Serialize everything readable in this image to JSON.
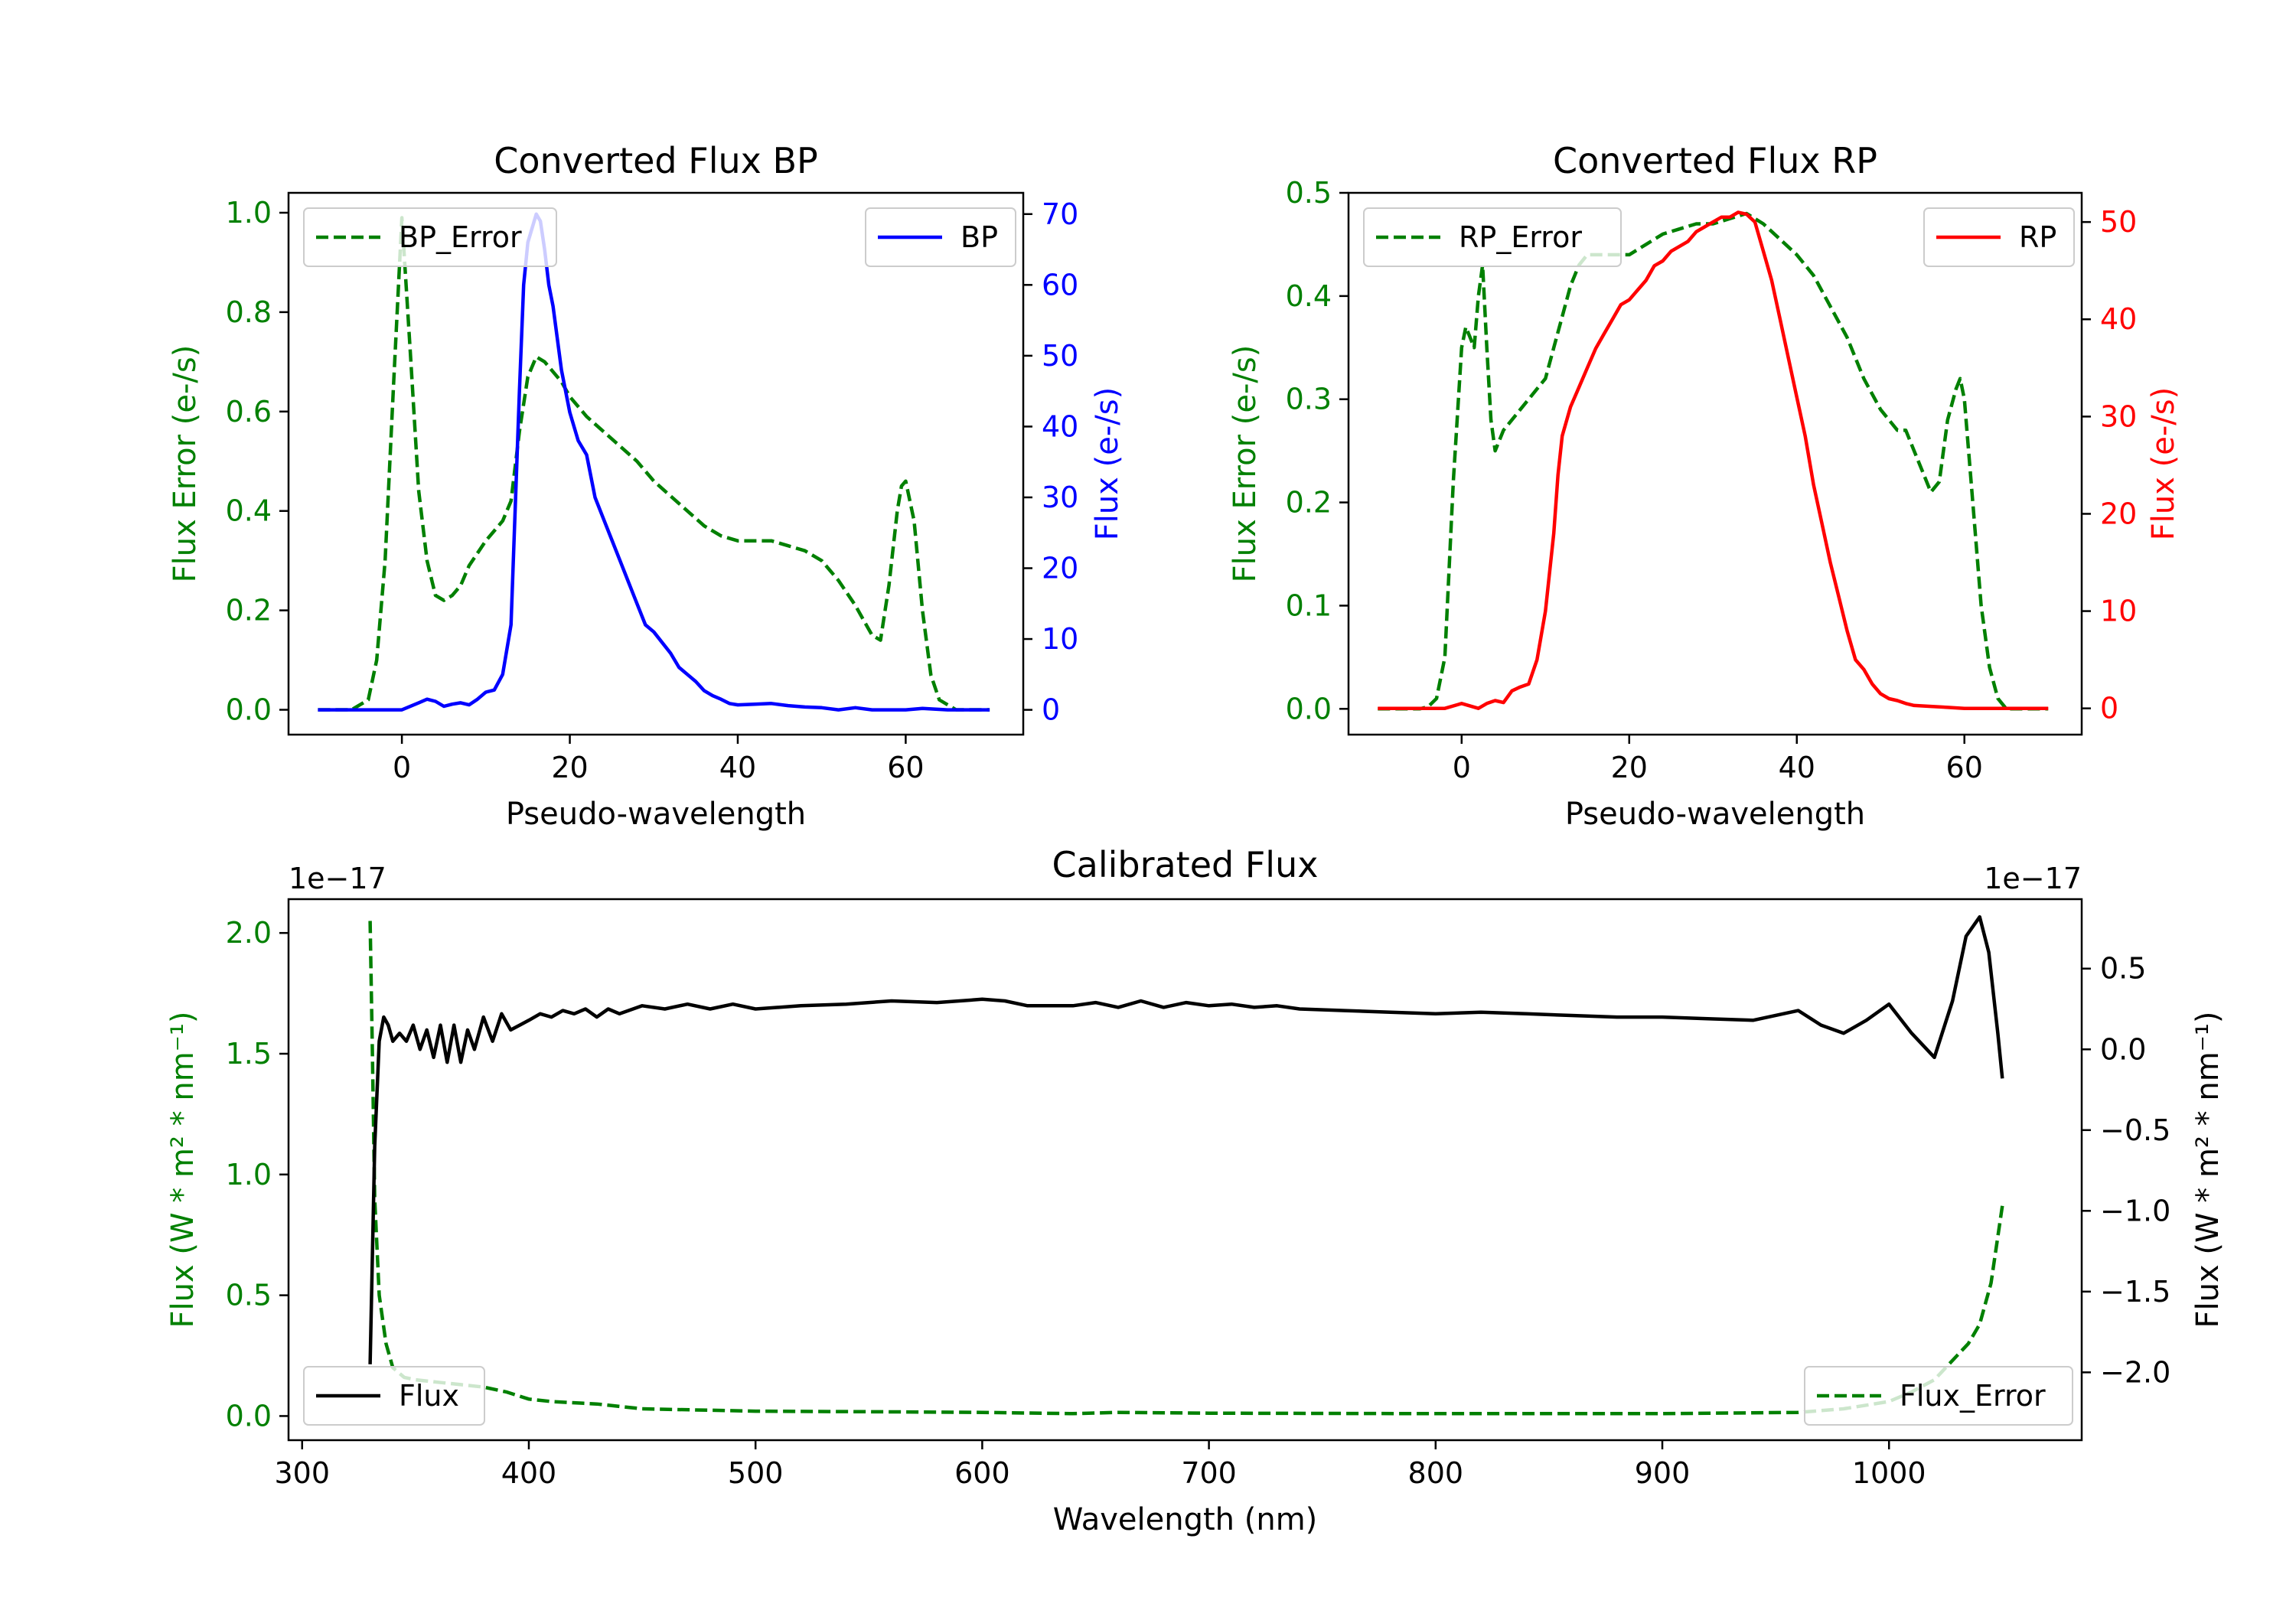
{
  "colors": {
    "bp": "#0000ff",
    "rp": "#ff0000",
    "error": "#008000",
    "flux": "#000000",
    "axis": "#000000"
  },
  "chart_data": [
    {
      "type": "line",
      "title": "Converted Flux BP",
      "xlabel": "Pseudo-wavelength",
      "ylabel_left": "Flux Error (e-/s)",
      "ylabel_right": "Flux (e-/s)",
      "xlim": [
        -13.5,
        74
      ],
      "ylim_left": [
        -0.05,
        1.04
      ],
      "ylim_right": [
        -3.5,
        73
      ],
      "xticks": [
        0,
        20,
        40,
        60
      ],
      "yticks_left": [
        0.0,
        0.2,
        0.4,
        0.6,
        0.8,
        1.0
      ],
      "yticks_left_labels": [
        "0.0",
        "0.2",
        "0.4",
        "0.6",
        "0.8",
        "1.0"
      ],
      "yticks_right": [
        0,
        10,
        20,
        30,
        40,
        50,
        60,
        70
      ],
      "yticks_right_labels": [
        "0",
        "10",
        "20",
        "30",
        "40",
        "50",
        "60",
        "70"
      ],
      "legend_left": "BP_Error",
      "legend_right": "BP",
      "series": [
        {
          "name": "BP_Error",
          "axis": "left",
          "style": "dashed",
          "color": "#008000",
          "x": [
            -10,
            -6,
            -4,
            -3,
            -2,
            -1,
            0,
            1,
            2,
            3,
            4,
            5,
            6,
            7,
            8,
            10,
            12,
            13,
            14,
            15,
            16,
            17,
            18,
            19,
            20,
            22,
            24,
            26,
            28,
            30,
            32,
            34,
            36,
            38,
            40,
            42,
            44,
            46,
            48,
            50,
            52,
            54,
            55,
            56,
            57,
            58,
            59,
            59.5,
            60,
            61,
            62,
            63,
            64,
            66,
            68,
            70
          ],
          "y": [
            0.0,
            0.0,
            0.02,
            0.1,
            0.3,
            0.65,
            0.99,
            0.72,
            0.44,
            0.3,
            0.23,
            0.22,
            0.23,
            0.25,
            0.29,
            0.34,
            0.38,
            0.42,
            0.56,
            0.67,
            0.71,
            0.7,
            0.68,
            0.66,
            0.63,
            0.59,
            0.56,
            0.53,
            0.5,
            0.46,
            0.43,
            0.4,
            0.37,
            0.35,
            0.34,
            0.34,
            0.34,
            0.33,
            0.32,
            0.3,
            0.26,
            0.21,
            0.18,
            0.15,
            0.14,
            0.25,
            0.4,
            0.45,
            0.46,
            0.38,
            0.2,
            0.07,
            0.02,
            0.0,
            0.0,
            0.0
          ]
        },
        {
          "name": "BP",
          "axis": "right",
          "style": "solid",
          "color": "#0000ff",
          "x": [
            -10,
            -5,
            -2,
            0,
            2,
            3,
            4,
            5,
            6,
            7,
            8,
            9,
            10,
            11,
            12,
            13,
            14,
            14.5,
            15,
            16,
            16.5,
            17,
            17.5,
            18,
            19,
            20,
            21,
            22,
            23,
            24,
            25,
            26,
            27,
            28,
            29,
            30,
            31,
            32,
            33,
            34,
            35,
            36,
            37,
            38,
            39,
            40,
            42,
            44,
            46,
            48,
            50,
            52,
            54,
            56,
            58,
            60,
            62,
            65,
            70
          ],
          "y": [
            0,
            0,
            0,
            0,
            1,
            1.5,
            1.2,
            0.5,
            0.8,
            1,
            0.7,
            1.5,
            2.5,
            2.8,
            5,
            12,
            45,
            60,
            66,
            70,
            69,
            65,
            60,
            57,
            48,
            42,
            38,
            36,
            30,
            27,
            24,
            21,
            18,
            15,
            12,
            11,
            9.5,
            8,
            6,
            5,
            4,
            2.7,
            2,
            1.5,
            0.9,
            0.7,
            0.8,
            0.9,
            0.6,
            0.4,
            0.3,
            0,
            0.3,
            0,
            0,
            0,
            0.2,
            0,
            0
          ]
        }
      ]
    },
    {
      "type": "line",
      "title": "Converted Flux RP",
      "xlabel": "Pseudo-wavelength",
      "ylabel_left": "Flux Error (e-/s)",
      "ylabel_right": "Flux (e-/s)",
      "xlim": [
        -13.5,
        74
      ],
      "ylim_left": [
        -0.025,
        0.5
      ],
      "ylim_right": [
        -2.7,
        53
      ],
      "xticks": [
        0,
        20,
        40,
        60
      ],
      "yticks_left": [
        0.0,
        0.1,
        0.2,
        0.3,
        0.4,
        0.5
      ],
      "yticks_left_labels": [
        "0.0",
        "0.1",
        "0.2",
        "0.3",
        "0.4",
        "0.5"
      ],
      "yticks_right": [
        0,
        10,
        20,
        30,
        40,
        50
      ],
      "yticks_right_labels": [
        "0",
        "10",
        "20",
        "30",
        "40",
        "50"
      ],
      "legend_left": "RP_Error",
      "legend_right": "RP",
      "series": [
        {
          "name": "RP_Error",
          "axis": "left",
          "style": "dashed",
          "color": "#008000",
          "x": [
            -10,
            -5,
            -4,
            -3,
            -2,
            -1,
            0,
            0.5,
            1,
            1.5,
            2,
            2.5,
            3,
            3.5,
            4,
            5,
            6,
            7,
            8,
            9,
            10,
            11,
            12,
            13,
            14,
            15,
            16,
            18,
            20,
            22,
            24,
            26,
            28,
            30,
            32,
            34,
            36,
            38,
            40,
            42,
            44,
            46,
            48,
            50,
            52,
            53,
            54,
            55,
            56,
            57,
            58,
            59,
            59.5,
            60,
            61,
            62,
            63,
            64,
            65,
            66,
            68,
            70
          ],
          "y": [
            0.0,
            0.0,
            0.002,
            0.01,
            0.05,
            0.22,
            0.35,
            0.37,
            0.36,
            0.35,
            0.4,
            0.43,
            0.35,
            0.28,
            0.25,
            0.27,
            0.28,
            0.29,
            0.3,
            0.31,
            0.32,
            0.35,
            0.38,
            0.41,
            0.43,
            0.44,
            0.44,
            0.44,
            0.44,
            0.45,
            0.46,
            0.465,
            0.47,
            0.47,
            0.475,
            0.48,
            0.47,
            0.455,
            0.44,
            0.42,
            0.39,
            0.36,
            0.32,
            0.29,
            0.27,
            0.27,
            0.25,
            0.23,
            0.21,
            0.22,
            0.28,
            0.31,
            0.32,
            0.3,
            0.2,
            0.1,
            0.04,
            0.01,
            0.0,
            0.0,
            0.0,
            0.0
          ]
        },
        {
          "name": "RP",
          "axis": "right",
          "style": "solid",
          "color": "#ff0000",
          "x": [
            -10,
            -5,
            -2,
            0,
            2,
            3,
            4,
            5,
            6,
            7,
            8,
            9,
            10,
            11,
            11.5,
            12,
            13,
            14,
            15,
            16,
            17,
            18,
            19,
            20,
            21,
            22,
            23,
            24,
            25,
            26,
            27,
            28,
            29,
            30,
            31,
            32,
            33,
            34,
            35,
            36,
            37,
            38,
            39,
            40,
            41,
            42,
            43,
            44,
            45,
            46,
            47,
            48,
            49,
            50,
            51,
            52,
            53,
            54,
            56,
            58,
            60,
            65,
            70
          ],
          "y": [
            0,
            0,
            0,
            0.5,
            0,
            0.5,
            0.8,
            0.6,
            1.8,
            2.2,
            2.5,
            5,
            10,
            18,
            24,
            28,
            31,
            33,
            35,
            37,
            38.5,
            40,
            41.5,
            42,
            43,
            44,
            45.5,
            46,
            47,
            47.5,
            48,
            49,
            49.5,
            50,
            50.5,
            50.5,
            51,
            50.8,
            50,
            47,
            44,
            40,
            36,
            32,
            28,
            23,
            19,
            15,
            11.5,
            8,
            5,
            4,
            2.5,
            1.5,
            1,
            0.8,
            0.5,
            0.3,
            0.2,
            0.1,
            0,
            0,
            0
          ]
        }
      ]
    },
    {
      "type": "line",
      "title": "Calibrated Flux",
      "xlabel": "Wavelength (nm)",
      "ylabel_left": "Flux (W * m² * nm⁻¹)",
      "ylabel_right": "Flux (W * m² * nm⁻¹)",
      "offset_left": "1e−17",
      "offset_right": "1e−17",
      "xlim": [
        294,
        1085
      ],
      "ylim_left": [
        -0.1,
        2.14
      ],
      "ylim_right": [
        -2.42,
        0.93
      ],
      "xticks": [
        300,
        400,
        500,
        600,
        700,
        800,
        900,
        1000
      ],
      "yticks_left": [
        0.0,
        0.5,
        1.0,
        1.5,
        2.0
      ],
      "yticks_left_labels": [
        "0.0",
        "0.5",
        "1.0",
        "1.5",
        "2.0"
      ],
      "yticks_right": [
        0.5,
        0.0,
        -0.5,
        -1.0,
        -1.5,
        -2.0
      ],
      "yticks_right_labels": [
        "0.5",
        "0.0",
        "−0.5",
        "−1.0",
        "−1.5",
        "−2.0"
      ],
      "legend_left": "Flux",
      "legend_right": "Flux_Error",
      "series": [
        {
          "name": "Flux_Error",
          "axis": "left",
          "style": "dashed",
          "color": "#008000",
          "x": [
            330,
            331,
            332,
            334,
            337,
            340,
            345,
            350,
            360,
            370,
            380,
            390,
            400,
            410,
            420,
            430,
            450,
            500,
            550,
            600,
            640,
            660,
            700,
            800,
            900,
            960,
            980,
            1000,
            1010,
            1020,
            1025,
            1030,
            1035,
            1040,
            1045,
            1050
          ],
          "y": [
            2.05,
            1.5,
            0.9,
            0.5,
            0.3,
            0.2,
            0.16,
            0.15,
            0.14,
            0.13,
            0.12,
            0.1,
            0.07,
            0.06,
            0.055,
            0.05,
            0.03,
            0.02,
            0.018,
            0.015,
            0.01,
            0.015,
            0.012,
            0.01,
            0.01,
            0.015,
            0.03,
            0.06,
            0.1,
            0.15,
            0.2,
            0.25,
            0.3,
            0.38,
            0.55,
            0.87
          ]
        },
        {
          "name": "Flux",
          "axis": "right",
          "style": "solid",
          "color": "#000000",
          "x": [
            330,
            332,
            334,
            336,
            338,
            340,
            343,
            346,
            349,
            352,
            355,
            358,
            361,
            364,
            367,
            370,
            373,
            376,
            380,
            384,
            388,
            392,
            396,
            400,
            405,
            410,
            415,
            420,
            425,
            430,
            435,
            440,
            450,
            460,
            470,
            480,
            490,
            500,
            520,
            540,
            560,
            580,
            600,
            610,
            620,
            640,
            650,
            660,
            670,
            680,
            690,
            700,
            710,
            720,
            730,
            740,
            760,
            780,
            800,
            820,
            840,
            860,
            880,
            900,
            920,
            940,
            960,
            970,
            980,
            990,
            1000,
            1010,
            1020,
            1028,
            1034,
            1040,
            1044,
            1048,
            1050
          ],
          "y": [
            -1.95,
            -0.6,
            0.05,
            0.2,
            0.15,
            0.05,
            0.1,
            0.05,
            0.15,
            0.0,
            0.12,
            -0.05,
            0.15,
            -0.08,
            0.15,
            -0.08,
            0.12,
            0.0,
            0.2,
            0.05,
            0.22,
            0.12,
            0.15,
            0.18,
            0.22,
            0.2,
            0.24,
            0.22,
            0.25,
            0.2,
            0.25,
            0.22,
            0.27,
            0.25,
            0.28,
            0.25,
            0.28,
            0.25,
            0.27,
            0.28,
            0.3,
            0.29,
            0.31,
            0.3,
            0.27,
            0.27,
            0.29,
            0.26,
            0.3,
            0.26,
            0.29,
            0.27,
            0.28,
            0.26,
            0.27,
            0.25,
            0.24,
            0.23,
            0.22,
            0.23,
            0.22,
            0.21,
            0.2,
            0.2,
            0.19,
            0.18,
            0.24,
            0.15,
            0.1,
            0.18,
            0.28,
            0.1,
            -0.05,
            0.3,
            0.7,
            0.82,
            0.6,
            0.1,
            -0.18
          ]
        }
      ]
    }
  ]
}
